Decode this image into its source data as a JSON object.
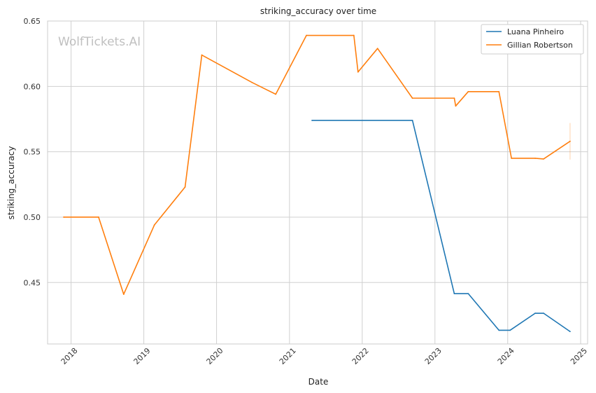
{
  "chart_data": {
    "type": "line",
    "title": "striking_accuracy over time",
    "xlabel": "Date",
    "ylabel": "striking_accuracy",
    "watermark": "WolfTickets.AI",
    "xlim": [
      "2017-09-05",
      "2025-02-05"
    ],
    "ylim": [
      0.403,
      0.65
    ],
    "x_ticks": [
      "2018",
      "2019",
      "2020",
      "2021",
      "2022",
      "2023",
      "2024",
      "2025"
    ],
    "y_ticks": [
      "0.45",
      "0.50",
      "0.55",
      "0.60",
      "0.65"
    ],
    "grid": true,
    "legend_position": "top-right",
    "series": [
      {
        "name": "Luana Pinheiro",
        "color": "#1f77b4",
        "points": [
          {
            "x": "2021-04-24",
            "y": 0.574
          },
          {
            "x": "2022-09-10",
            "y": 0.574
          },
          {
            "x": "2023-04-08",
            "y": 0.4415
          },
          {
            "x": "2023-06-17",
            "y": 0.4415
          },
          {
            "x": "2023-11-18",
            "y": 0.4135
          },
          {
            "x": "2024-01-13",
            "y": 0.4135
          },
          {
            "x": "2024-05-18",
            "y": 0.4265
          },
          {
            "x": "2024-06-29",
            "y": 0.4265
          },
          {
            "x": "2024-11-09",
            "y": 0.4125
          }
        ]
      },
      {
        "name": "Gillian Robertson",
        "color": "#ff7f0e",
        "points": [
          {
            "x": "2017-11-25",
            "y": 0.5
          },
          {
            "x": "2018-05-19",
            "y": 0.5
          },
          {
            "x": "2018-09-22",
            "y": 0.441
          },
          {
            "x": "2019-02-23",
            "y": 0.494
          },
          {
            "x": "2019-07-27",
            "y": 0.523
          },
          {
            "x": "2019-10-19",
            "y": 0.624
          },
          {
            "x": "2020-06-27",
            "y": 0.603
          },
          {
            "x": "2020-10-24",
            "y": 0.594
          },
          {
            "x": "2021-03-27",
            "y": 0.639
          },
          {
            "x": "2021-11-20",
            "y": 0.639
          },
          {
            "x": "2021-12-11",
            "y": 0.611
          },
          {
            "x": "2022-03-19",
            "y": 0.629
          },
          {
            "x": "2022-09-10",
            "y": 0.591
          },
          {
            "x": "2023-04-08",
            "y": 0.591
          },
          {
            "x": "2023-04-15",
            "y": 0.585
          },
          {
            "x": "2023-06-17",
            "y": 0.596
          },
          {
            "x": "2023-11-18",
            "y": 0.596
          },
          {
            "x": "2024-01-20",
            "y": 0.545
          },
          {
            "x": "2024-05-18",
            "y": 0.545
          },
          {
            "x": "2024-06-29",
            "y": 0.5445
          },
          {
            "x": "2024-11-09",
            "y": 0.558
          }
        ],
        "error_bar": {
          "x": "2024-11-09",
          "low": 0.544,
          "high": 0.572
        }
      }
    ]
  }
}
